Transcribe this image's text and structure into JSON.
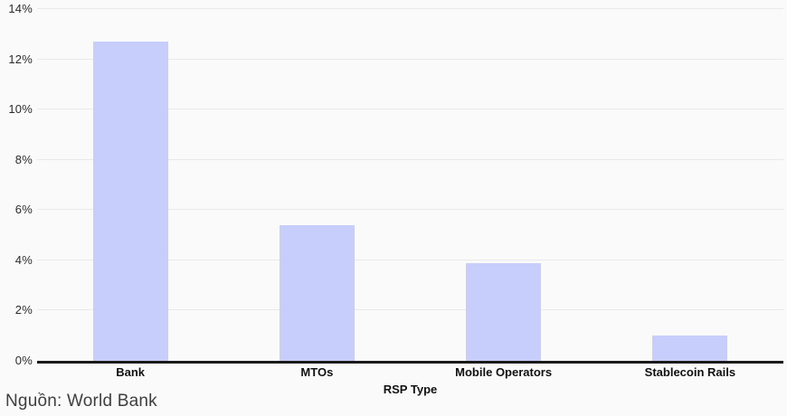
{
  "chart_data": {
    "type": "bar",
    "categories": [
      "Bank",
      "MTOs",
      "Mobile Operators",
      "Stablecoin Rails"
    ],
    "values": [
      12.7,
      5.4,
      3.9,
      1.0
    ],
    "title": "",
    "xlabel": "RSP Type",
    "ylabel": "",
    "ylim": [
      0,
      14
    ],
    "yticks": [
      0,
      2,
      4,
      6,
      8,
      10,
      12,
      14
    ],
    "ytick_suffix": "%",
    "grid": true,
    "legend": false,
    "bar_color": "#c8cefb"
  },
  "source_note": "Nguồn: World Bank",
  "colors": {
    "background": "#fafafa",
    "gridline": "#e9e9e9",
    "axis_line": "#1a1a1a",
    "bar": "#c8cefb",
    "tick_text": "#2b2b2b",
    "category_text": "#111111",
    "source_text": "#3f3f3f"
  }
}
